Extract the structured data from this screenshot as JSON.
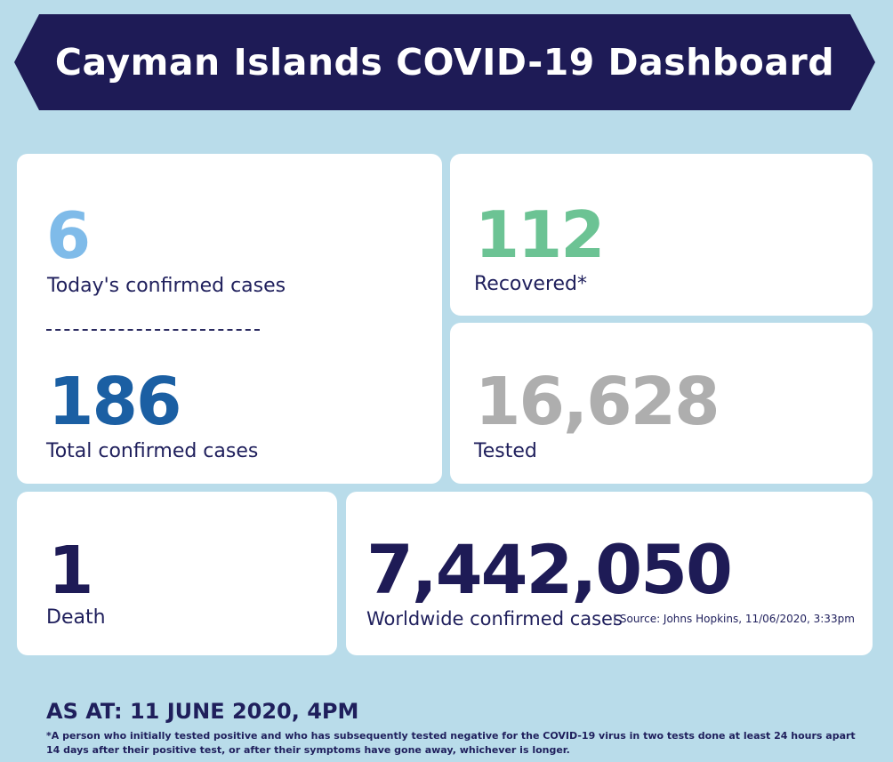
{
  "header": {
    "title": "Cayman Islands COVID-19 Dashboard",
    "bg_color": "#1e1b56"
  },
  "todays_cases": {
    "value": "6",
    "label": "Today's confirmed cases",
    "color": "#7fbbe9"
  },
  "total_cases": {
    "value": "186",
    "label": "Total confirmed cases",
    "color": "#1b5fa3"
  },
  "recovered": {
    "value": "112",
    "label": "Recovered*",
    "color": "#6cc394"
  },
  "tested": {
    "value": "16,628",
    "label": "Tested",
    "color": "#aeaeae"
  },
  "death": {
    "value": "1",
    "label": "Death",
    "color": "#1e1b56"
  },
  "worldwide": {
    "value": "7,442,050",
    "label": "Worldwide confirmed cases",
    "source": "| Source: Johns Hopkins, 11/06/2020, 3:33pm",
    "color": "#1e1b56"
  },
  "footer": {
    "as_at": "AS AT: 11 JUNE 2020, 4PM",
    "note": "*A person who initially tested positive and who has subsequently tested negative for the COVID-19 virus in two tests done at least 24 hours apart 14 days after their positive test, or after their symptoms have gone away, whichever is longer."
  }
}
